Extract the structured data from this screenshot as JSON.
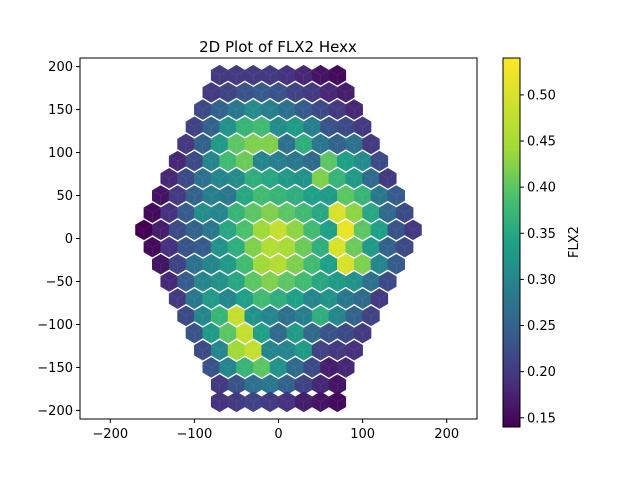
{
  "chart_data": {
    "type": "heatmap",
    "title": "2D Plot of FLX2 Hexx",
    "xlabel": "",
    "ylabel": "",
    "xlim": [
      -236,
      236
    ],
    "ylim": [
      -210,
      210
    ],
    "x_ticks": [
      -200,
      -100,
      0,
      100,
      200
    ],
    "y_ticks": [
      -200,
      -150,
      -100,
      -50,
      0,
      50,
      100,
      150,
      200
    ],
    "colorbar": {
      "label": "FLX2",
      "range": [
        0.14,
        0.54
      ],
      "ticks": [
        0.15,
        0.2,
        0.25,
        0.3,
        0.35,
        0.4,
        0.45,
        0.5
      ],
      "colormap": "viridis"
    },
    "grid": false,
    "hex_cells": {
      "pitch": 20,
      "rows": [
        {
          "y": 190,
          "values": [
            0.2,
            0.2,
            0.2,
            0.2,
            0.19,
            0.18,
            0.16,
            0.15
          ]
        },
        {
          "y": 170,
          "values": [
            0.2,
            0.21,
            0.23,
            0.24,
            0.23,
            0.21,
            0.2,
            0.18,
            0.17
          ]
        },
        {
          "y": 150,
          "values": [
            0.22,
            0.25,
            0.28,
            0.31,
            0.29,
            0.27,
            0.24,
            0.22,
            0.2,
            0.18
          ]
        },
        {
          "y": 130,
          "values": [
            0.21,
            0.25,
            0.32,
            0.37,
            0.38,
            0.31,
            0.33,
            0.29,
            0.23,
            0.22,
            0.2
          ]
        },
        {
          "y": 110,
          "values": [
            0.2,
            0.25,
            0.33,
            0.4,
            0.42,
            0.42,
            0.27,
            0.36,
            0.28,
            0.25,
            0.27,
            0.2
          ]
        },
        {
          "y": 90,
          "values": [
            0.18,
            0.22,
            0.3,
            0.38,
            0.41,
            0.3,
            0.29,
            0.28,
            0.26,
            0.4,
            0.34,
            0.31,
            0.22
          ]
        },
        {
          "y": 70,
          "values": [
            0.18,
            0.22,
            0.27,
            0.3,
            0.31,
            0.36,
            0.35,
            0.33,
            0.32,
            0.42,
            0.37,
            0.33,
            0.26,
            0.2
          ]
        },
        {
          "y": 50,
          "values": [
            0.16,
            0.2,
            0.25,
            0.29,
            0.28,
            0.35,
            0.38,
            0.37,
            0.36,
            0.34,
            0.33,
            0.4,
            0.37,
            0.28,
            0.24
          ]
        },
        {
          "y": 30,
          "values": [
            0.15,
            0.19,
            0.24,
            0.31,
            0.3,
            0.37,
            0.4,
            0.42,
            0.4,
            0.38,
            0.35,
            0.5,
            0.43,
            0.35,
            0.26,
            0.22
          ]
        },
        {
          "y": 10,
          "values": [
            0.14,
            0.17,
            0.22,
            0.25,
            0.28,
            0.35,
            0.39,
            0.44,
            0.48,
            0.43,
            0.38,
            0.34,
            0.52,
            0.4,
            0.34,
            0.23,
            0.2
          ]
        },
        {
          "y": -10,
          "values": [
            0.15,
            0.19,
            0.23,
            0.24,
            0.32,
            0.36,
            0.42,
            0.46,
            0.45,
            0.41,
            0.36,
            0.5,
            0.41,
            0.33,
            0.25,
            0.22
          ]
        },
        {
          "y": -30,
          "values": [
            0.16,
            0.21,
            0.27,
            0.3,
            0.33,
            0.38,
            0.44,
            0.46,
            0.42,
            0.38,
            0.34,
            0.5,
            0.42,
            0.3,
            0.24
          ]
        },
        {
          "y": -50,
          "values": [
            0.18,
            0.24,
            0.3,
            0.32,
            0.35,
            0.4,
            0.42,
            0.4,
            0.38,
            0.35,
            0.33,
            0.32,
            0.27,
            0.22
          ]
        },
        {
          "y": -70,
          "values": [
            0.2,
            0.28,
            0.33,
            0.3,
            0.34,
            0.38,
            0.36,
            0.34,
            0.3,
            0.32,
            0.28,
            0.26,
            0.2
          ]
        },
        {
          "y": -90,
          "values": [
            0.22,
            0.3,
            0.37,
            0.48,
            0.32,
            0.3,
            0.27,
            0.29,
            0.36,
            0.3,
            0.25,
            0.21
          ]
        },
        {
          "y": -110,
          "values": [
            0.23,
            0.33,
            0.4,
            0.48,
            0.34,
            0.26,
            0.33,
            0.26,
            0.23,
            0.22,
            0.2
          ]
        },
        {
          "y": -130,
          "values": [
            0.22,
            0.3,
            0.44,
            0.48,
            0.3,
            0.3,
            0.33,
            0.21,
            0.2,
            0.19
          ]
        },
        {
          "y": -150,
          "values": [
            0.23,
            0.3,
            0.37,
            0.4,
            0.32,
            0.26,
            0.22,
            0.17,
            0.18
          ]
        },
        {
          "y": -170,
          "values": [
            0.2,
            0.23,
            0.27,
            0.28,
            0.25,
            0.21,
            0.18,
            0.16
          ]
        },
        {
          "y": -190,
          "values": [
            0.19,
            0.2,
            0.21,
            0.2,
            0.19,
            0.17,
            0.16,
            0.15
          ]
        }
      ]
    }
  }
}
